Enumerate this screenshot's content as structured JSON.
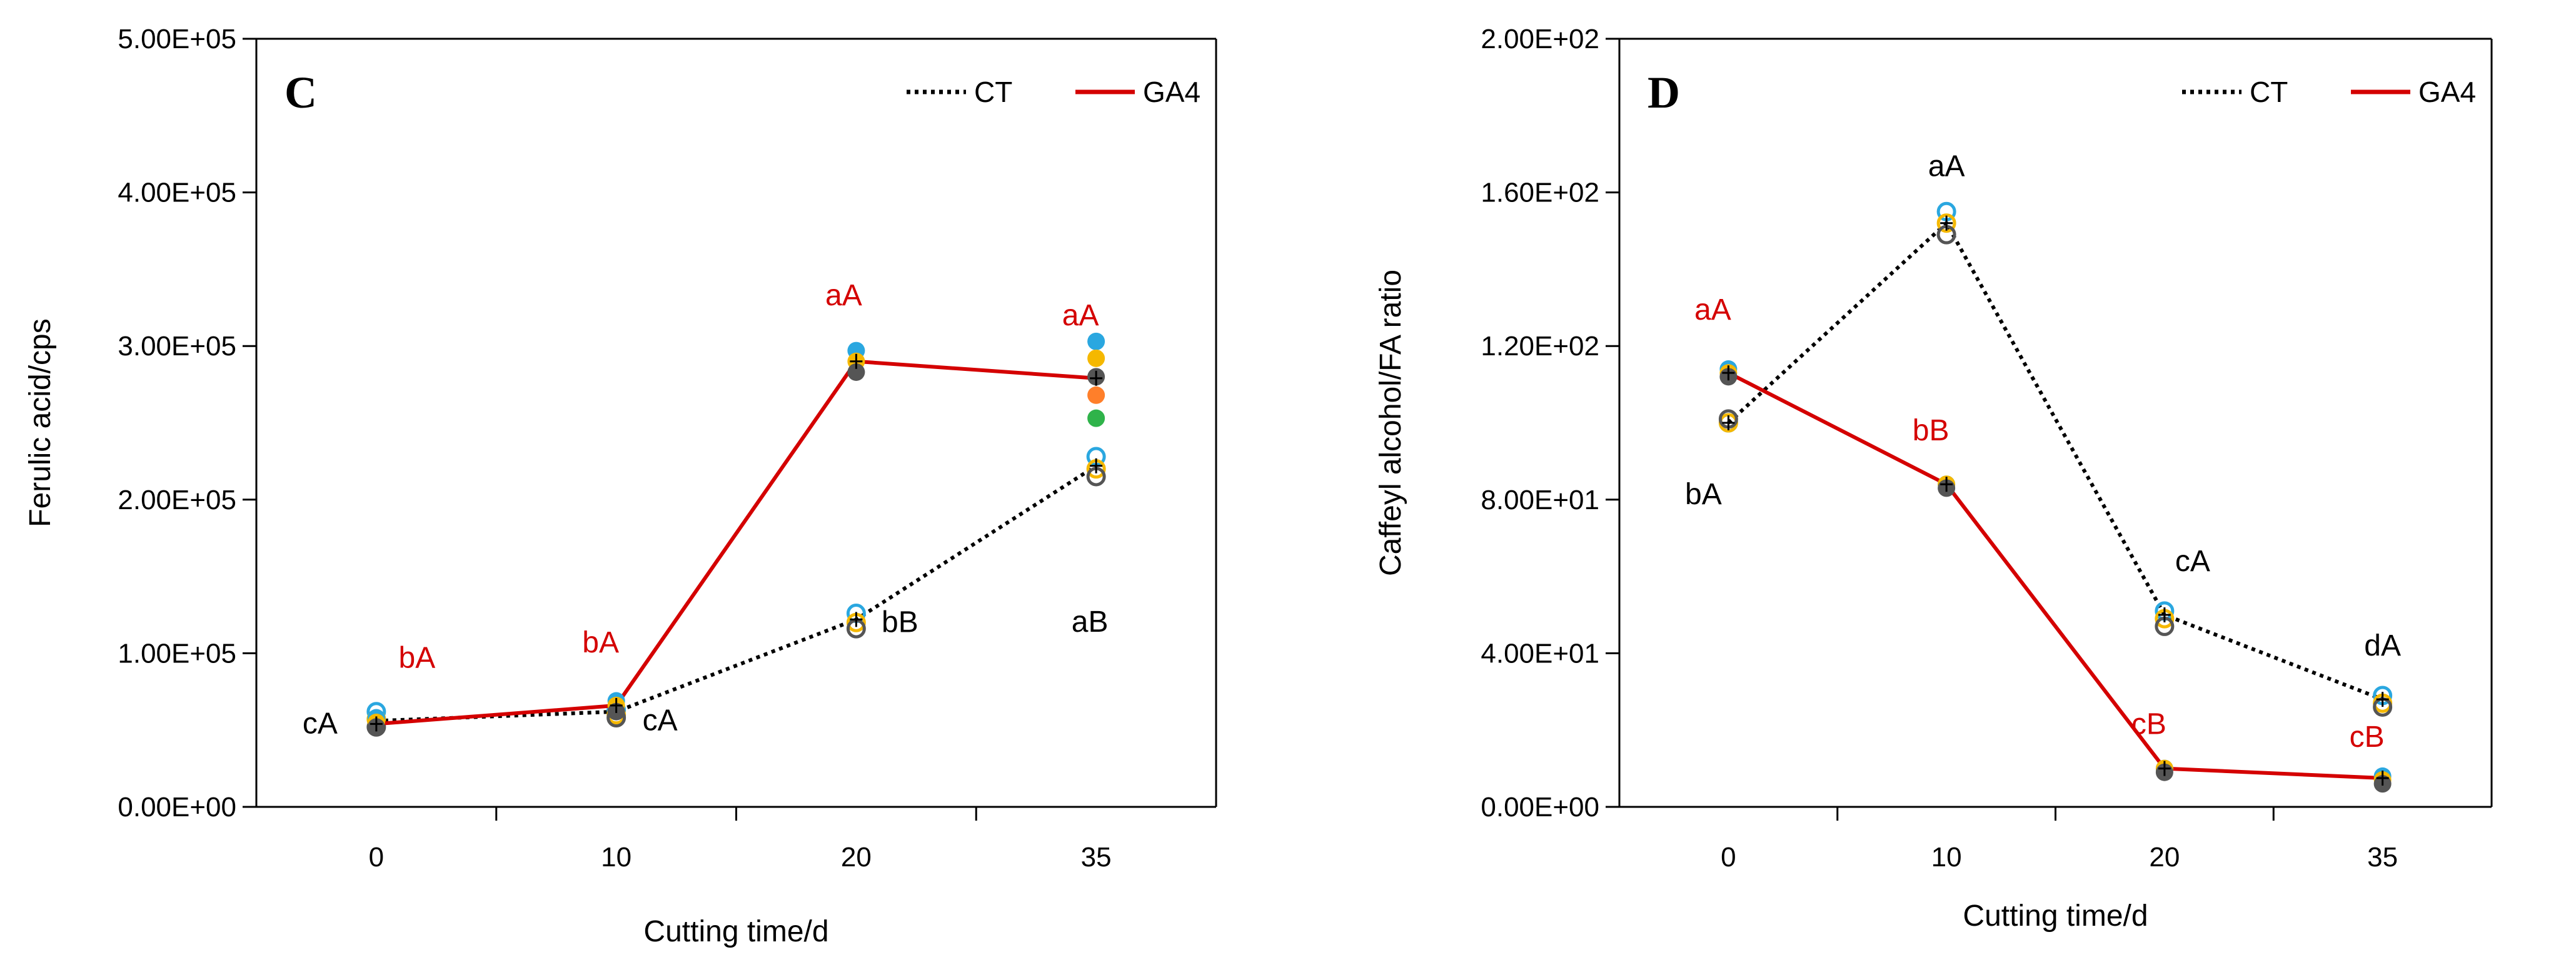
{
  "chart_data": [
    {
      "type": "line",
      "panel_label": "C",
      "xlabel": "Cutting time/d",
      "ylabel": "Ferulic acid/cps",
      "categories": [
        "0",
        "10",
        "20",
        "35"
      ],
      "ylim": [
        0,
        500000
      ],
      "yticks": [
        0,
        100000,
        200000,
        300000,
        400000,
        500000
      ],
      "ytick_labels": [
        "0.00E+00",
        "1.00E+05",
        "2.00E+05",
        "3.00E+05",
        "4.00E+05",
        "5.00E+05"
      ],
      "legend_position": "top-right",
      "series": [
        {
          "name": "CT",
          "color": "#000000",
          "style": "dotted",
          "values": [
            56000,
            62000,
            122000,
            222000
          ],
          "replicates": [
            [
              62000,
              57000,
              52000
            ],
            [
              63000,
              60000,
              58000
            ],
            [
              126000,
              120000,
              116000
            ],
            [
              228000,
              220000,
              215000
            ]
          ],
          "hollow": true,
          "labels": [
            "cA",
            "cA",
            "bB",
            "aB"
          ]
        },
        {
          "name": "GA4",
          "color": "#d40000",
          "style": "solid",
          "values": [
            54000,
            66000,
            290000,
            279000
          ],
          "replicates": [
            [
              58000,
              55000,
              52000
            ],
            [
              69000,
              66000,
              62000
            ],
            [
              297000,
              290000,
              283000
            ],
            [
              303000,
              292000,
              280000,
              268000,
              253000
            ]
          ],
          "hollow": false,
          "labels": [
            "bA",
            "bA",
            "aA",
            "aA"
          ]
        }
      ]
    },
    {
      "type": "line",
      "panel_label": "D",
      "xlabel": "Cutting time/d",
      "ylabel": "Caffeyl alcohol/FA ratio",
      "categories": [
        "0",
        "10",
        "20",
        "35"
      ],
      "ylim": [
        0,
        200
      ],
      "yticks": [
        0,
        40,
        80,
        120,
        160,
        200
      ],
      "ytick_labels": [
        "0.00E+00",
        "4.00E+01",
        "8.00E+01",
        "1.20E+02",
        "1.60E+02",
        "2.00E+02"
      ],
      "legend_position": "top-right",
      "series": [
        {
          "name": "CT",
          "color": "#000000",
          "style": "dotted",
          "values": [
            100,
            152,
            50,
            28
          ],
          "replicates": [
            [
              100,
              100,
              101
            ],
            [
              155,
              152,
              149
            ],
            [
              51,
              49,
              47
            ],
            [
              29,
              27,
              26
            ]
          ],
          "hollow": true,
          "labels": [
            "bA",
            "aA",
            "cA",
            "dA"
          ]
        },
        {
          "name": "GA4",
          "color": "#d40000",
          "style": "solid",
          "values": [
            113,
            84,
            10,
            7.5
          ],
          "replicates": [
            [
              114,
              113,
              112
            ],
            [
              84,
              84,
              83
            ],
            [
              10,
              10,
              9
            ],
            [
              8,
              7,
              6
            ]
          ],
          "hollow": false,
          "labels": [
            "aA",
            "bB",
            "cB",
            "cB"
          ]
        }
      ]
    }
  ],
  "palette": {
    "replicate_colors": [
      "#2aa7e0",
      "#f5b800",
      "#555555",
      "#ff7f2a",
      "#2fb34a"
    ]
  }
}
